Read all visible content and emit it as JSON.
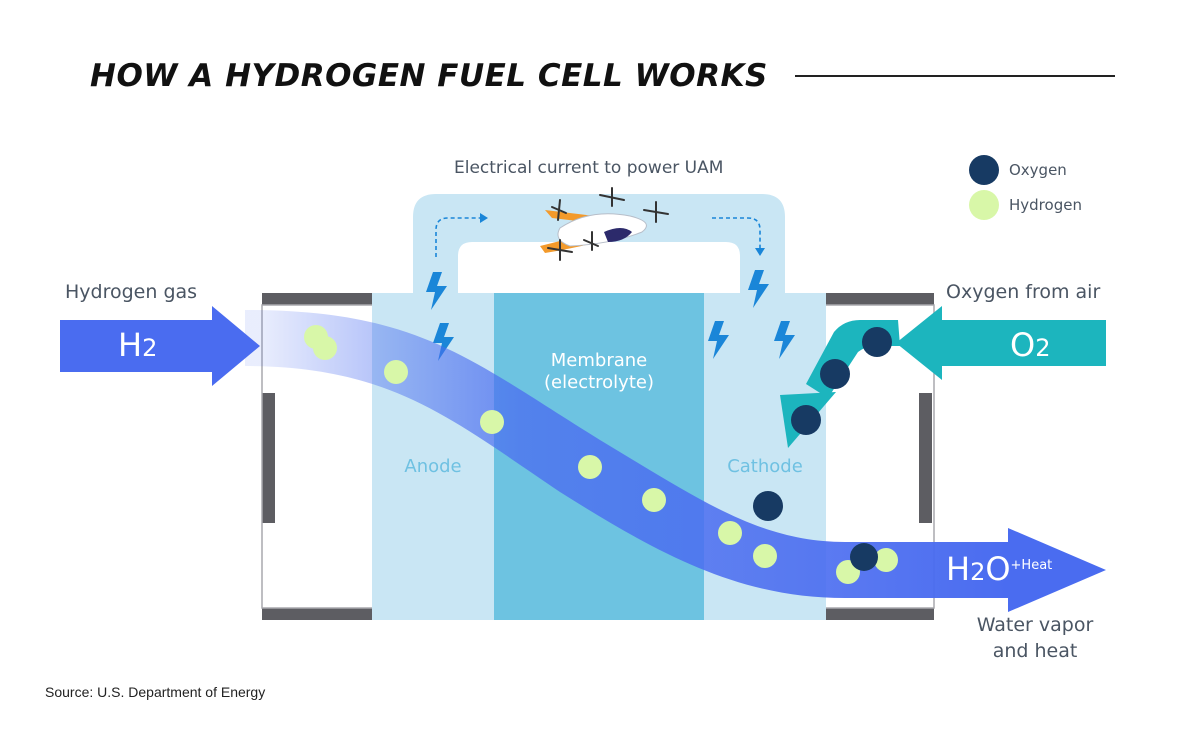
{
  "title": "HOW A HYDROGEN FUEL CELL WORKS",
  "source": "Source: U.S. Department of Energy",
  "labels": {
    "electrical_current": "Electrical current to power UAM",
    "hydrogen_gas": "Hydrogen gas",
    "oxygen_from_air": "Oxygen from air",
    "membrane_line1": "Membrane",
    "membrane_line2": "(electrolyte)",
    "anode": "Anode",
    "cathode": "Cathode",
    "water_line1": "Water vapor",
    "water_line2": "and heat"
  },
  "arrows": {
    "h2": {
      "main": "H",
      "sub": "2"
    },
    "o2": {
      "main": "O",
      "sub": "2"
    },
    "h2o": {
      "main1": "H",
      "sub": "2",
      "main2": "O",
      "suffix": "+Heat"
    }
  },
  "legend": [
    {
      "label": "Oxygen",
      "color": "#173a63"
    },
    {
      "label": "Hydrogen",
      "color": "#d8f7a8"
    }
  ],
  "colors": {
    "hydrogen_flow": "#4a6cf0",
    "oxygen_flow": "#1cb5be",
    "electrode": "#c9e6f4",
    "membrane": "#6dc3e1",
    "lightning": "#1a86d8",
    "frame": "#5d5d62",
    "oxygen": "#173a63",
    "hydrogen": "#d8f7a8"
  }
}
